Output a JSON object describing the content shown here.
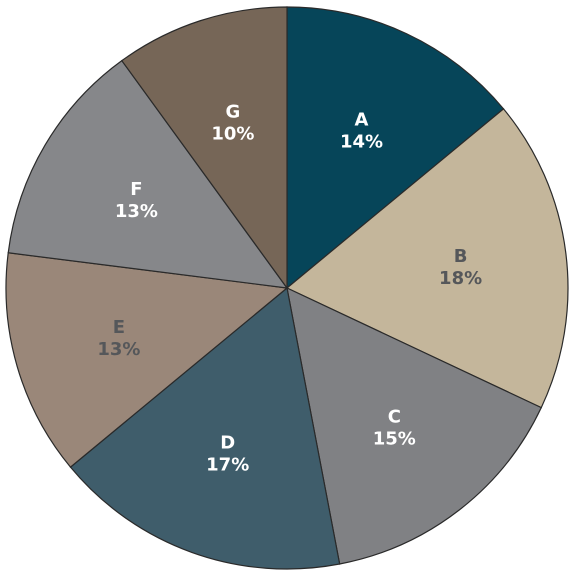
{
  "chart_data": {
    "type": "pie",
    "slices": [
      {
        "label": "A",
        "value": 14,
        "value_text": "14%",
        "color": "#064559",
        "text_color": "#ffffff"
      },
      {
        "label": "B",
        "value": 18,
        "value_text": "18%",
        "color": "#c4b69b",
        "text_color": "#55575a"
      },
      {
        "label": "C",
        "value": 15,
        "value_text": "15%",
        "color": "#808184",
        "text_color": "#ffffff"
      },
      {
        "label": "D",
        "value": 17,
        "value_text": "17%",
        "color": "#3f5d6b",
        "text_color": "#ffffff"
      },
      {
        "label": "E",
        "value": 13,
        "value_text": "13%",
        "color": "#9a8779",
        "text_color": "#55575a"
      },
      {
        "label": "F",
        "value": 13,
        "value_text": "13%",
        "color": "#86878a",
        "text_color": "#ffffff"
      },
      {
        "label": "G",
        "value": 10,
        "value_text": "10%",
        "color": "#766657",
        "text_color": "#ffffff"
      }
    ],
    "start": "top",
    "direction": "clockwise",
    "legend": "none"
  }
}
